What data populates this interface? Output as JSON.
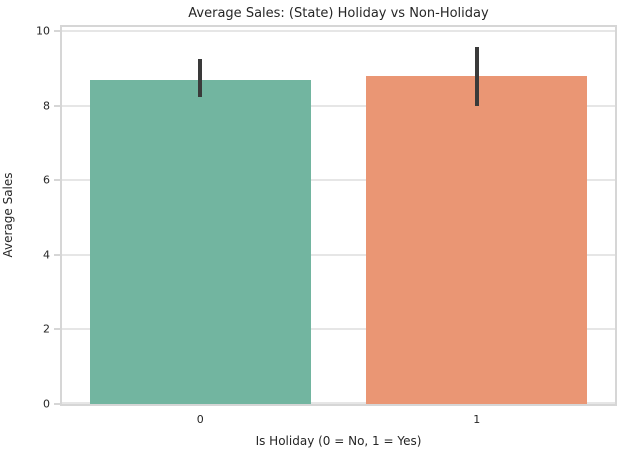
{
  "chart_data": {
    "type": "bar",
    "title": "Average Sales: (State) Holiday vs Non-Holiday",
    "xlabel": "Is Holiday (0 = No, 1 = Yes)",
    "ylabel": "Average Sales",
    "categories": [
      "0",
      "1"
    ],
    "series": [
      {
        "name": "average_sales",
        "values": [
          8.7,
          8.8
        ],
        "error_bars": [
          {
            "low": 8.25,
            "high": 9.25
          },
          {
            "low": 8.0,
            "high": 9.58
          }
        ]
      }
    ],
    "bar_colors": [
      "#72b5a0",
      "#ea9674"
    ],
    "error_bar_color": "#3a3a3a",
    "yticks": [
      0,
      2,
      4,
      6,
      8,
      10
    ],
    "ylim": [
      0,
      10.12
    ],
    "bar_width_fraction": 0.8,
    "grid": "horizontal",
    "grid_color": "#e6e6e6",
    "spine_color": "#d6d6d6",
    "text_color": "#262626",
    "background_color": "#ffffff",
    "legend": "none"
  }
}
